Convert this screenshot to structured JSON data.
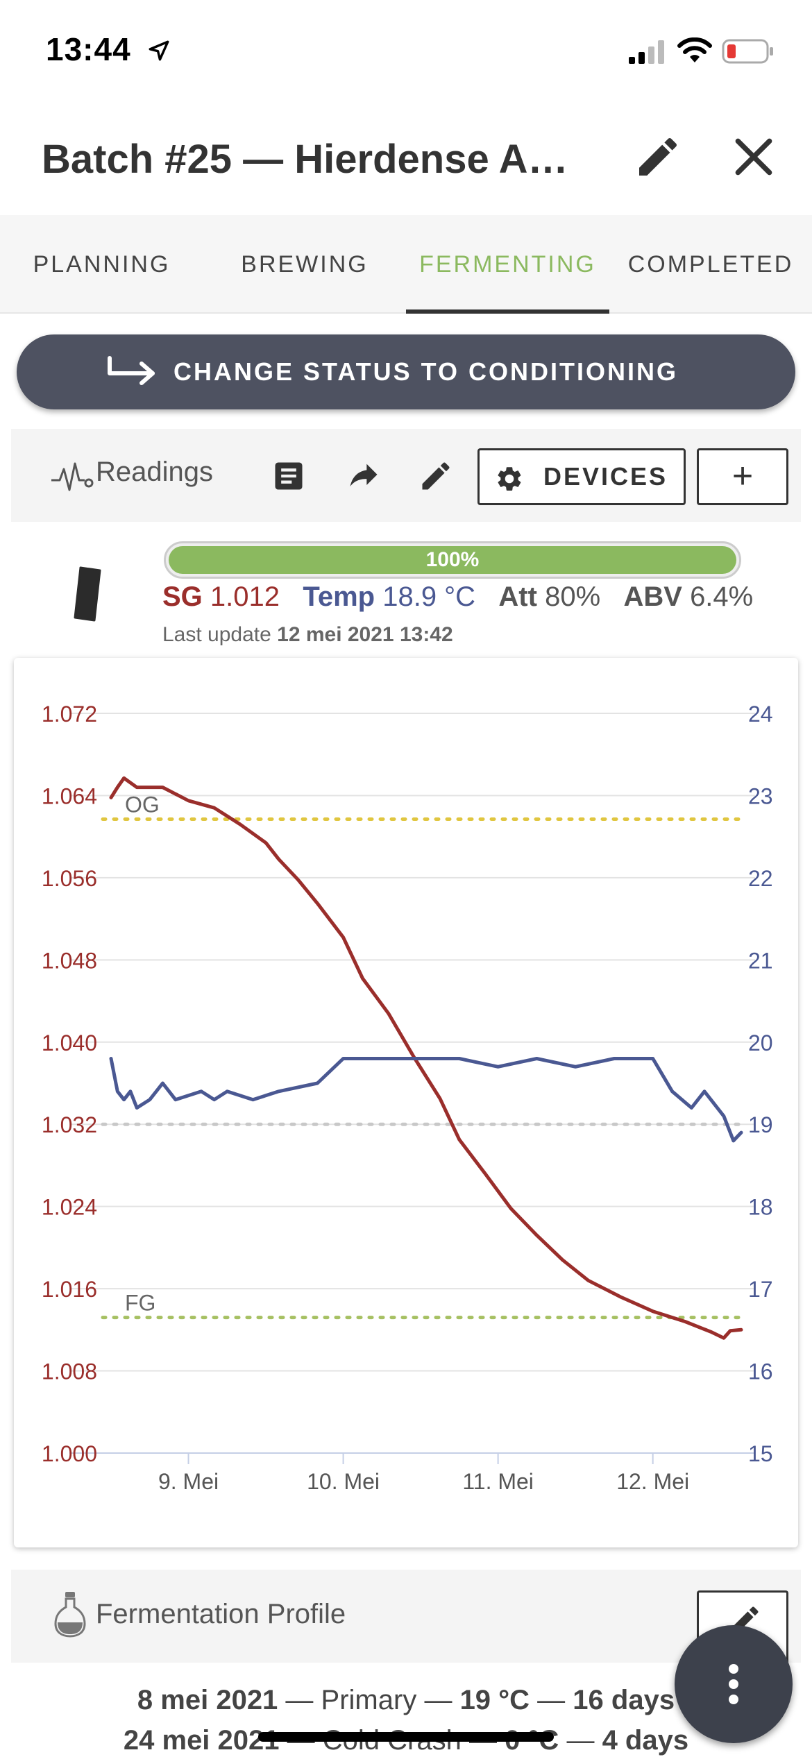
{
  "status_bar": {
    "time": "13:44"
  },
  "header": {
    "title": "Batch #25 — Hierdense A…"
  },
  "tabs": [
    {
      "label": "PLANNING",
      "active": false
    },
    {
      "label": "BREWING",
      "active": false
    },
    {
      "label": "FERMENTING",
      "active": true
    },
    {
      "label": "COMPLETED",
      "active": false
    }
  ],
  "status_button": {
    "label": "CHANGE STATUS TO CONDITIONING"
  },
  "toolbar": {
    "readings_label": "Readings",
    "devices_label": "DEVICES",
    "add_label": "+"
  },
  "device": {
    "progress_percent": 100,
    "progress_label": "100%",
    "sg_key": "SG",
    "sg_value": "1.012",
    "temp_key": "Temp",
    "temp_value": "18.9 °C",
    "att_key": "Att",
    "att_value": "80%",
    "abv_key": "ABV",
    "abv_value": "6.4%",
    "last_update_prefix": "Last update",
    "last_update_value": "12 mei 2021 13:42"
  },
  "colors": {
    "sg": "#9a2e2b",
    "temp": "#4a5892",
    "accent_green": "#8bb95f",
    "og_line": "#e0c640",
    "fg_line": "#a6c062"
  },
  "chart_data": {
    "type": "line",
    "x_start": "2021-05-08T12:00",
    "x_end": "2021-05-12T13:42",
    "xticks": [
      {
        "x": "2021-05-09",
        "label": "9. Mei"
      },
      {
        "x": "2021-05-10",
        "label": "10. Mei"
      },
      {
        "x": "2021-05-11",
        "label": "11. Mei"
      },
      {
        "x": "2021-05-12",
        "label": "12. Mei"
      }
    ],
    "y_left": {
      "min": 1.0,
      "max": 1.072,
      "ticks": [
        "1.072",
        "1.064",
        "1.056",
        "1.048",
        "1.040",
        "1.032",
        "1.024",
        "1.016",
        "1.008",
        "1.000"
      ]
    },
    "y_right": {
      "min": 15,
      "max": 24,
      "ticks": [
        "24",
        "23",
        "22",
        "21",
        "20",
        "19",
        "18",
        "17",
        "16",
        "15"
      ]
    },
    "grid": true,
    "reference_lines": [
      {
        "label": "OG",
        "axis": "left",
        "value": 1.0617,
        "style": "dotted",
        "color": "#e0c640"
      },
      {
        "label": "FG",
        "axis": "left",
        "value": 1.0132,
        "style": "dotted",
        "color": "#a6c062"
      },
      {
        "label": "",
        "axis": "right",
        "value": 19.0,
        "style": "dotted",
        "color": "#c8c8c8"
      }
    ],
    "series": [
      {
        "axis": "left",
        "color": "#9a2e2b",
        "points": [
          [
            "2021-05-08T12:00",
            1.0638
          ],
          [
            "2021-05-08T13:00",
            1.0648
          ],
          [
            "2021-05-08T14:00",
            1.0657
          ],
          [
            "2021-05-08T16:00",
            1.0648
          ],
          [
            "2021-05-08T20:00",
            1.0648
          ],
          [
            "2021-05-09T00:00",
            1.0635
          ],
          [
            "2021-05-09T04:00",
            1.0628
          ],
          [
            "2021-05-09T08:00",
            1.0612
          ],
          [
            "2021-05-09T12:00",
            1.0594
          ],
          [
            "2021-05-09T14:00",
            1.0578
          ],
          [
            "2021-05-09T17:00",
            1.0558
          ],
          [
            "2021-05-09T20:00",
            1.0535
          ],
          [
            "2021-05-10T00:00",
            1.0502
          ],
          [
            "2021-05-10T03:00",
            1.0462
          ],
          [
            "2021-05-10T07:00",
            1.0428
          ],
          [
            "2021-05-10T11:00",
            1.0385
          ],
          [
            "2021-05-10T15:00",
            1.0345
          ],
          [
            "2021-05-10T18:00",
            1.0305
          ],
          [
            "2021-05-10T22:00",
            1.0272
          ],
          [
            "2021-05-11T02:00",
            1.0238
          ],
          [
            "2021-05-11T06:00",
            1.0212
          ],
          [
            "2021-05-11T10:00",
            1.0188
          ],
          [
            "2021-05-11T14:00",
            1.0168
          ],
          [
            "2021-05-11T19:00",
            1.0152
          ],
          [
            "2021-05-12T00:00",
            1.0138
          ],
          [
            "2021-05-12T05:00",
            1.0128
          ],
          [
            "2021-05-12T09:00",
            1.0118
          ],
          [
            "2021-05-12T11:00",
            1.0112
          ],
          [
            "2021-05-12T12:00",
            1.0119
          ],
          [
            "2021-05-12T13:42",
            1.012
          ]
        ]
      },
      {
        "axis": "right",
        "color": "#4a5892",
        "points": [
          [
            "2021-05-08T12:00",
            19.8
          ],
          [
            "2021-05-08T13:00",
            19.4
          ],
          [
            "2021-05-08T14:00",
            19.3
          ],
          [
            "2021-05-08T15:00",
            19.4
          ],
          [
            "2021-05-08T16:00",
            19.2
          ],
          [
            "2021-05-08T18:00",
            19.3
          ],
          [
            "2021-05-08T20:00",
            19.5
          ],
          [
            "2021-05-08T22:00",
            19.3
          ],
          [
            "2021-05-09T02:00",
            19.4
          ],
          [
            "2021-05-09T04:00",
            19.3
          ],
          [
            "2021-05-09T06:00",
            19.4
          ],
          [
            "2021-05-09T10:00",
            19.3
          ],
          [
            "2021-05-09T14:00",
            19.4
          ],
          [
            "2021-05-09T20:00",
            19.5
          ],
          [
            "2021-05-10T00:00",
            19.8
          ],
          [
            "2021-05-10T06:00",
            19.8
          ],
          [
            "2021-05-10T12:00",
            19.8
          ],
          [
            "2021-05-10T18:00",
            19.8
          ],
          [
            "2021-05-11T00:00",
            19.7
          ],
          [
            "2021-05-11T06:00",
            19.8
          ],
          [
            "2021-05-11T12:00",
            19.7
          ],
          [
            "2021-05-11T18:00",
            19.8
          ],
          [
            "2021-05-12T00:00",
            19.8
          ],
          [
            "2021-05-12T03:00",
            19.4
          ],
          [
            "2021-05-12T06:00",
            19.2
          ],
          [
            "2021-05-12T08:00",
            19.4
          ],
          [
            "2021-05-12T11:00",
            19.1
          ],
          [
            "2021-05-12T12:30",
            18.8
          ],
          [
            "2021-05-12T13:42",
            18.9
          ]
        ]
      }
    ]
  },
  "profile": {
    "label": "Fermentation Profile",
    "steps": [
      {
        "date": "8 mei 2021",
        "name": "Primary",
        "temp": "19 °C",
        "duration": "16 days"
      },
      {
        "date": "24 mei 2021",
        "name": "Cold Crash",
        "temp": "0 °C",
        "duration": "4 days"
      }
    ]
  }
}
